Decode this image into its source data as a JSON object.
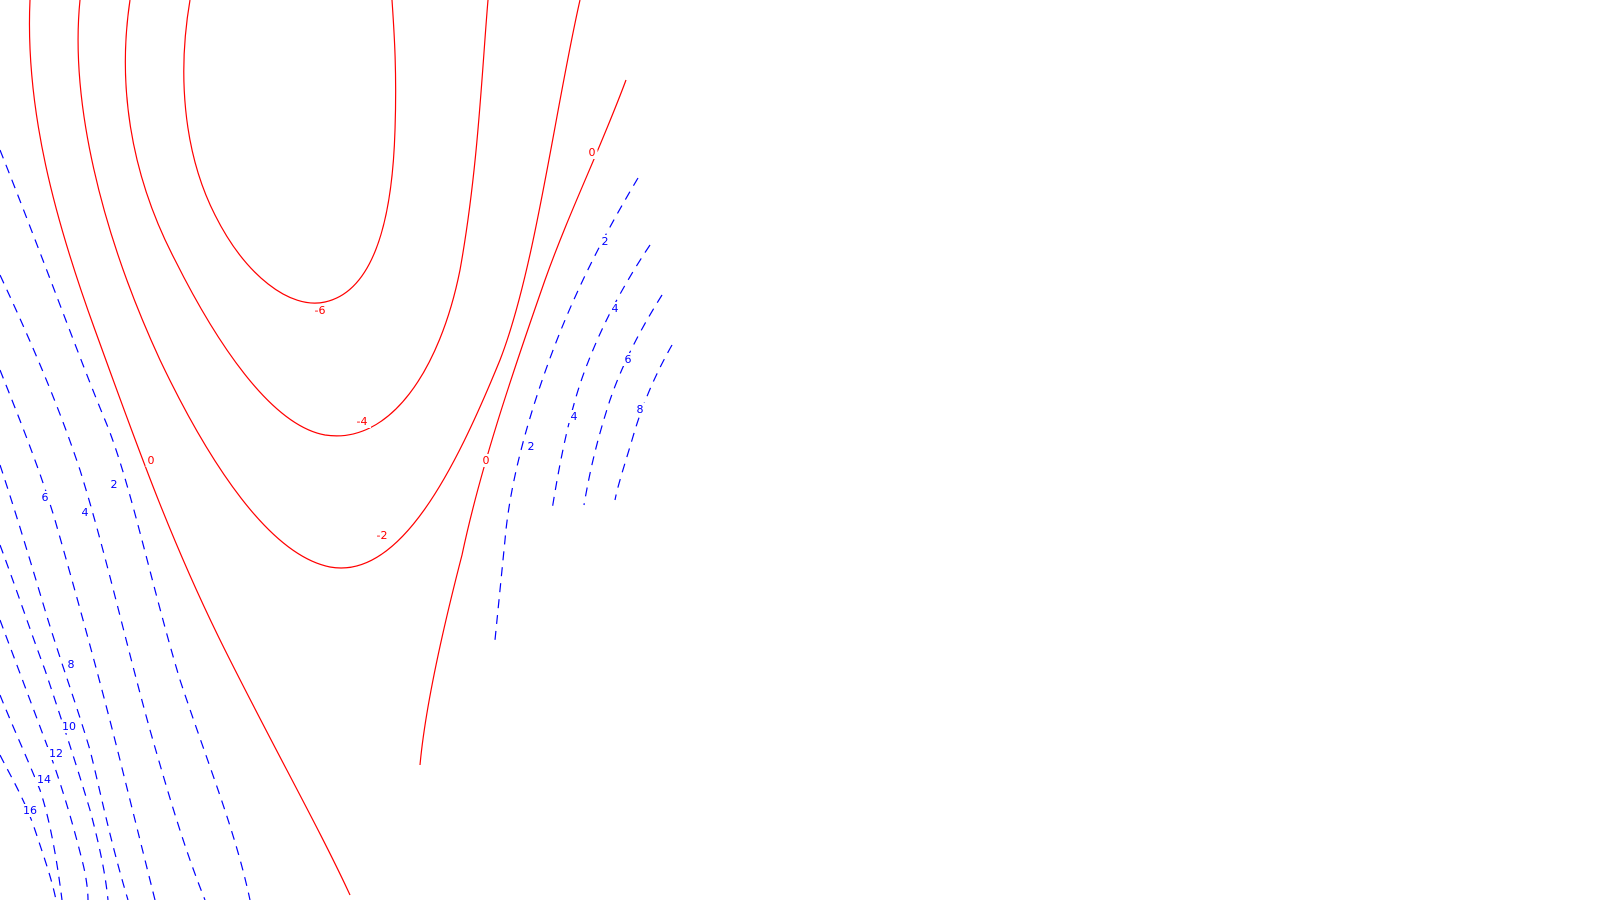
{
  "chart_data": {
    "type": "contour",
    "grid": false,
    "colors": {
      "nonpositive": "#ff0000",
      "positive": "#0000ff"
    },
    "line_styles": {
      "nonpositive": "solid",
      "positive": "dashed"
    },
    "series": [
      {
        "level": -6,
        "label": "-6",
        "color": "#ff0000",
        "style": "solid"
      },
      {
        "level": -4,
        "label": "-4",
        "color": "#ff0000",
        "style": "solid"
      },
      {
        "level": -2,
        "label": "-2",
        "color": "#ff0000",
        "style": "solid"
      },
      {
        "level": 0,
        "label": "0",
        "color": "#ff0000",
        "style": "solid"
      },
      {
        "level": 2,
        "label": "2",
        "color": "#0000ff",
        "style": "dashed"
      },
      {
        "level": 4,
        "label": "4",
        "color": "#0000ff",
        "style": "dashed"
      },
      {
        "level": 6,
        "label": "6",
        "color": "#0000ff",
        "style": "dashed"
      },
      {
        "level": 8,
        "label": "8",
        "color": "#0000ff",
        "style": "dashed"
      },
      {
        "level": 10,
        "label": "10",
        "color": "#0000ff",
        "style": "dashed"
      },
      {
        "level": 12,
        "label": "12",
        "color": "#0000ff",
        "style": "dashed"
      },
      {
        "level": 14,
        "label": "14",
        "color": "#0000ff",
        "style": "dashed"
      },
      {
        "level": 16,
        "label": "16",
        "color": "#0000ff",
        "style": "dashed"
      }
    ]
  }
}
